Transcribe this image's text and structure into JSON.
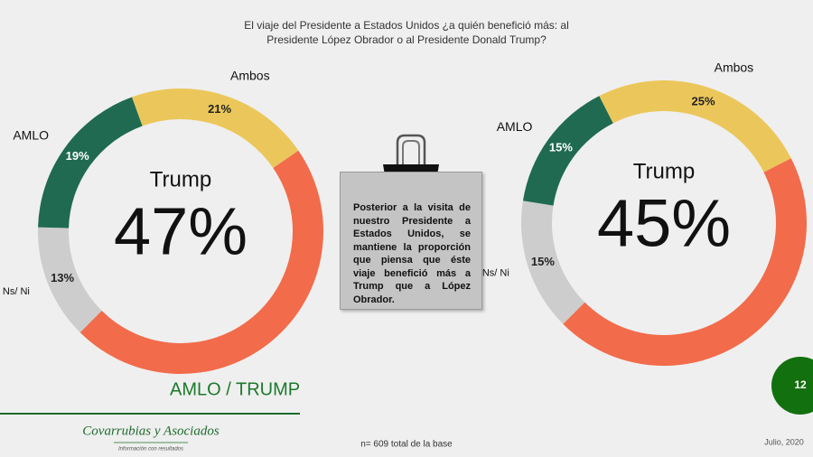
{
  "title": "El viaje del Presidente a Estados Unidos ¿a quién benefició más: al Presidente López Obrador o al Presidente Donald Trump?",
  "chart_data": [
    {
      "type": "donut",
      "categories": [
        "Ambos",
        "Trump",
        "Ns/ Ni",
        "AMLO"
      ],
      "values": [
        21,
        47,
        13,
        19
      ],
      "value_labels": [
        "21%",
        "47%",
        "13%",
        "19%"
      ],
      "colors": [
        "#ebc75b",
        "#f26b4b",
        "#cdcdcd",
        "#1f6a51"
      ]
    },
    {
      "type": "donut",
      "categories": [
        "Ambos",
        "Trump",
        "Ns/ Ni",
        "AMLO"
      ],
      "values": [
        25,
        45,
        15,
        15
      ],
      "value_labels": [
        "25%",
        "45%",
        "15%",
        "15%"
      ],
      "colors": [
        "#ebc75b",
        "#f26b4b",
        "#cdcdcd",
        "#1f6a51"
      ]
    }
  ],
  "note": "Posterior a la visita de nuestro Presidente a Estados Unidos, se mantiene la proporción que piensa que éste viaje benefició más a Trump que a López Obrador.",
  "section_label": "AMLO / TRUMP",
  "logo": {
    "name": "Covarrubias y Asociados",
    "tagline": "Información con resultados"
  },
  "footer": "n= 609 total de la base",
  "date": "Julio, 2020",
  "page_number": 12
}
